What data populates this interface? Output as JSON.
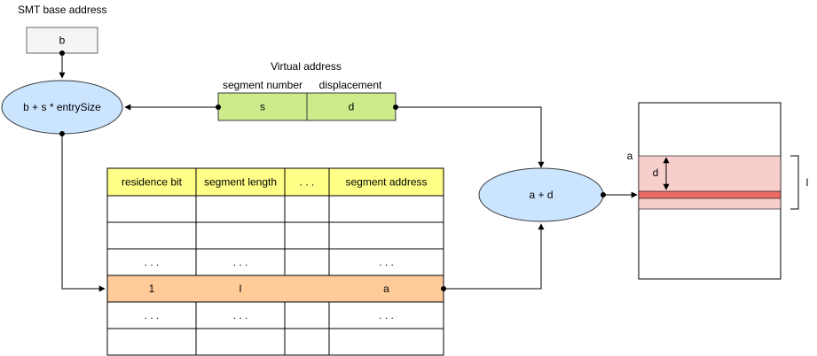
{
  "labels": {
    "smt_base_address": "SMT base address",
    "virtual_address": "Virtual address"
  },
  "base_box": {
    "text": "b"
  },
  "compute_index": {
    "text": "b + s * entrySize"
  },
  "virtual_address": {
    "segment_header": "segment number",
    "displacement_header": "displacement",
    "segment_value": "s",
    "displacement_value": "d"
  },
  "sum_node": {
    "text": "a + d"
  },
  "table": {
    "headers": [
      "residence bit",
      "segment length",
      ". . .",
      "segment address"
    ],
    "rows": [
      [
        "",
        "",
        "",
        ""
      ],
      [
        "",
        "",
        "",
        ""
      ],
      [
        ". . .",
        ". . .",
        "",
        ". . ."
      ],
      [
        "1",
        "l",
        "",
        "a"
      ],
      [
        ". . .",
        ". . .",
        "",
        ". . ."
      ],
      [
        "",
        "",
        "",
        ""
      ]
    ]
  },
  "memory": {
    "segment_start": "a",
    "displacement": "d",
    "segment_length": "l"
  },
  "colors": {
    "yellow": "#ffff88",
    "green": "#cdeb8b",
    "blue": "#cce5ff",
    "orange": "#ffcc99",
    "pink": "#f8cecc",
    "red": "#ea6b66",
    "grey": "#f5f5f5"
  }
}
